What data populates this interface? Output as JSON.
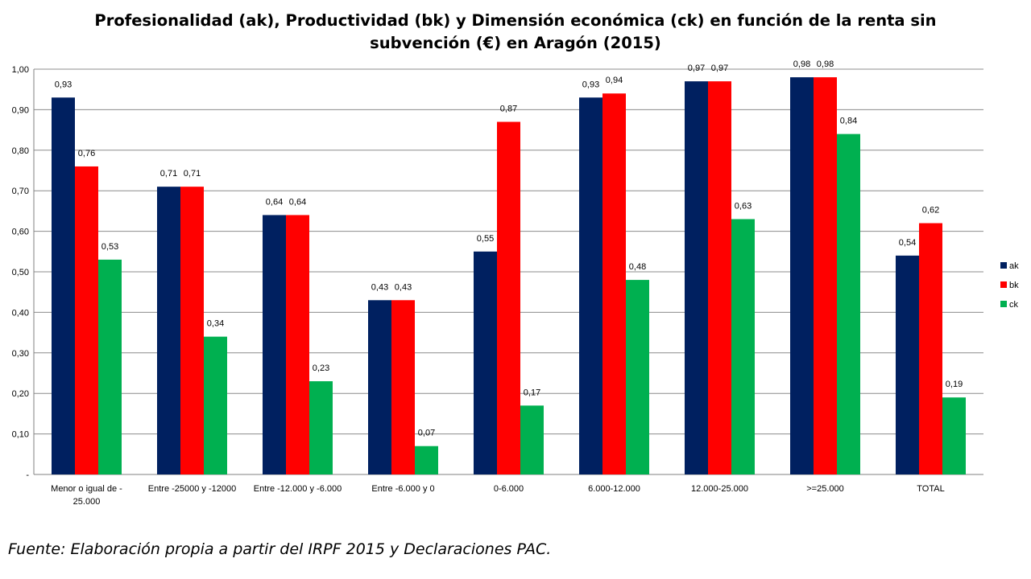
{
  "chart_data": {
    "type": "bar",
    "title_line1": "Profesionalidad (ak), Productividad (bk) y Dimensión económica (ck) en función de la renta sin",
    "title_line2": "subvención (€) en Aragón (2015)",
    "categories": [
      [
        "Menor o igual de -",
        "25.000"
      ],
      [
        "Entre -25000 y -12000"
      ],
      [
        "Entre -12.000 y -6.000"
      ],
      [
        "Entre -6.000 y 0"
      ],
      [
        "0-6.000"
      ],
      [
        "6.000-12.000"
      ],
      [
        "12.000-25.000"
      ],
      [
        ">=25.000"
      ],
      [
        "TOTAL"
      ]
    ],
    "series": [
      {
        "name": "ak",
        "color": "#002060",
        "values": [
          0.93,
          0.71,
          0.64,
          0.43,
          0.55,
          0.93,
          0.97,
          0.98,
          0.54
        ]
      },
      {
        "name": "bk",
        "color": "#ff0000",
        "values": [
          0.76,
          0.71,
          0.64,
          0.43,
          0.87,
          0.94,
          0.97,
          0.98,
          0.62
        ]
      },
      {
        "name": "ck",
        "color": "#00b050",
        "values": [
          0.53,
          0.34,
          0.23,
          0.07,
          0.17,
          0.48,
          0.63,
          0.84,
          0.19
        ]
      }
    ],
    "y_ticks": [
      "-",
      "0,10",
      "0,20",
      "0,30",
      "0,40",
      "0,50",
      "0,60",
      "0,70",
      "0,80",
      "0,90",
      "1,00"
    ],
    "ylim": [
      0,
      1.0
    ],
    "grid": true,
    "legend_position": "right"
  },
  "source_note": "Fuente: Elaboración propia a partir del IRPF 2015 y Declaraciones PAC."
}
